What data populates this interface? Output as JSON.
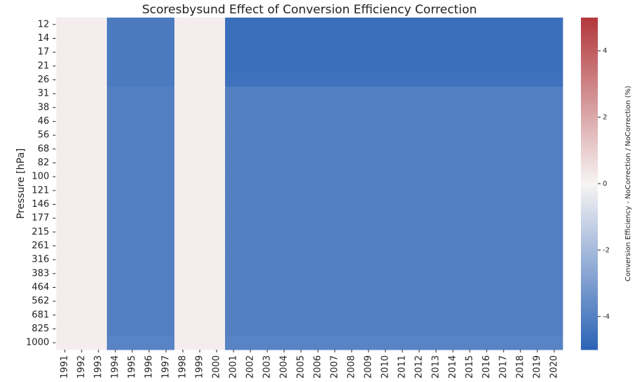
{
  "chart_data": {
    "type": "heatmap",
    "title": "Scoresbysund Effect of Conversion Efficiency Correction",
    "y_label": "Pressure [hPa]",
    "colorbar_label": "Conversion Efficiency - NoCorrection / NoCorrection  (%)",
    "categories": [
      "1991",
      "1992",
      "1993",
      "1994",
      "1995",
      "1996",
      "1997",
      "1998",
      "1999",
      "2000",
      "2001",
      "2002",
      "2003",
      "2004",
      "2005",
      "2006",
      "2007",
      "2008",
      "2009",
      "2010",
      "2011",
      "2012",
      "2013",
      "2014",
      "2015",
      "2016",
      "2017",
      "2018",
      "2019",
      "2020"
    ],
    "y_categories": [
      12,
      14,
      17,
      21,
      26,
      31,
      38,
      46,
      56,
      68,
      82,
      100,
      121,
      146,
      177,
      215,
      261,
      316,
      383,
      464,
      562,
      681,
      825,
      1000
    ],
    "values": [
      [
        0.2,
        0.2,
        0.2,
        -4.2,
        -4.2,
        -4.2,
        -4.2,
        0.2,
        0.2,
        0.2,
        -4.6,
        -4.6,
        -4.6,
        -4.6,
        -4.6,
        -4.6,
        -4.6,
        -4.6,
        -4.6,
        -4.6,
        -4.6,
        -4.6,
        -4.6,
        -4.6,
        -4.6,
        -4.6,
        -4.6,
        -4.6,
        -4.6,
        -4.6
      ],
      [
        0.2,
        0.2,
        0.2,
        -4.2,
        -4.2,
        -4.2,
        -4.2,
        0.2,
        0.2,
        0.2,
        -4.6,
        -4.6,
        -4.6,
        -4.6,
        -4.6,
        -4.6,
        -4.6,
        -4.6,
        -4.6,
        -4.6,
        -4.6,
        -4.6,
        -4.6,
        -4.6,
        -4.6,
        -4.6,
        -4.6,
        -4.6,
        -4.6,
        -4.6
      ],
      [
        0.2,
        0.2,
        0.2,
        -4.2,
        -4.2,
        -4.2,
        -4.2,
        0.2,
        0.2,
        0.2,
        -4.6,
        -4.6,
        -4.6,
        -4.6,
        -4.6,
        -4.6,
        -4.6,
        -4.6,
        -4.6,
        -4.6,
        -4.6,
        -4.6,
        -4.6,
        -4.6,
        -4.6,
        -4.6,
        -4.6,
        -4.6,
        -4.6,
        -4.6
      ],
      [
        0.2,
        0.2,
        0.2,
        -4.2,
        -4.2,
        -4.2,
        -4.2,
        0.2,
        0.2,
        0.2,
        -4.6,
        -4.6,
        -4.6,
        -4.6,
        -4.6,
        -4.6,
        -4.6,
        -4.6,
        -4.6,
        -4.6,
        -4.6,
        -4.6,
        -4.6,
        -4.6,
        -4.6,
        -4.6,
        -4.6,
        -4.6,
        -4.6,
        -4.6
      ],
      [
        0.2,
        0.2,
        0.2,
        -4.2,
        -4.2,
        -4.2,
        -4.2,
        0.2,
        0.2,
        0.2,
        -4.5,
        -4.5,
        -4.5,
        -4.5,
        -4.5,
        -4.5,
        -4.5,
        -4.5,
        -4.5,
        -4.5,
        -4.5,
        -4.5,
        -4.5,
        -4.5,
        -4.5,
        -4.5,
        -4.5,
        -4.5,
        -4.5,
        -4.5
      ],
      [
        0.2,
        0.2,
        0.2,
        -4.0,
        -4.0,
        -4.0,
        -4.0,
        0.2,
        0.2,
        0.2,
        -4.0,
        -4.0,
        -4.0,
        -4.0,
        -4.0,
        -4.0,
        -4.0,
        -4.0,
        -4.0,
        -4.0,
        -4.0,
        -4.0,
        -4.0,
        -4.0,
        -4.0,
        -4.0,
        -4.0,
        -4.0,
        -4.0,
        -4.0
      ],
      [
        0.2,
        0.2,
        0.2,
        -4.0,
        -4.0,
        -4.0,
        -4.0,
        0.2,
        0.2,
        0.2,
        -4.0,
        -4.0,
        -4.0,
        -4.0,
        -4.0,
        -4.0,
        -4.0,
        -4.0,
        -4.0,
        -4.0,
        -4.0,
        -4.0,
        -4.0,
        -4.0,
        -4.0,
        -4.0,
        -4.0,
        -4.0,
        -4.0,
        -4.0
      ],
      [
        0.2,
        0.2,
        0.2,
        -4.0,
        -4.0,
        -4.0,
        -4.0,
        0.2,
        0.2,
        0.2,
        -4.0,
        -4.0,
        -4.0,
        -4.0,
        -4.0,
        -4.0,
        -4.0,
        -4.0,
        -4.0,
        -4.0,
        -4.0,
        -4.0,
        -4.0,
        -4.0,
        -4.0,
        -4.0,
        -4.0,
        -4.0,
        -4.0,
        -4.0
      ],
      [
        0.2,
        0.2,
        0.2,
        -4.0,
        -4.0,
        -4.0,
        -4.0,
        0.2,
        0.2,
        0.2,
        -4.0,
        -4.0,
        -4.0,
        -4.0,
        -4.0,
        -4.0,
        -4.0,
        -4.0,
        -4.0,
        -4.0,
        -4.0,
        -4.0,
        -4.0,
        -4.0,
        -4.0,
        -4.0,
        -4.0,
        -4.0,
        -4.0,
        -4.0
      ],
      [
        0.2,
        0.2,
        0.2,
        -4.0,
        -4.0,
        -4.0,
        -4.0,
        0.2,
        0.2,
        0.2,
        -4.0,
        -4.0,
        -4.0,
        -4.0,
        -4.0,
        -4.0,
        -4.0,
        -4.0,
        -4.0,
        -4.0,
        -4.0,
        -4.0,
        -4.0,
        -4.0,
        -4.0,
        -4.0,
        -4.0,
        -4.0,
        -4.0,
        -4.0
      ],
      [
        0.2,
        0.2,
        0.2,
        -4.0,
        -4.0,
        -4.0,
        -4.0,
        0.2,
        0.2,
        0.2,
        -4.0,
        -4.0,
        -4.0,
        -4.0,
        -4.0,
        -4.0,
        -4.0,
        -4.0,
        -4.0,
        -4.0,
        -4.0,
        -4.0,
        -4.0,
        -4.0,
        -4.0,
        -4.0,
        -4.0,
        -4.0,
        -4.0,
        -4.0
      ],
      [
        0.2,
        0.2,
        0.2,
        -4.0,
        -4.0,
        -4.0,
        -4.0,
        0.2,
        0.2,
        0.2,
        -4.0,
        -4.0,
        -4.0,
        -4.0,
        -4.0,
        -4.0,
        -4.0,
        -4.0,
        -4.0,
        -4.0,
        -4.0,
        -4.0,
        -4.0,
        -4.0,
        -4.0,
        -4.0,
        -4.0,
        -4.0,
        -4.0,
        -4.0
      ],
      [
        0.2,
        0.2,
        0.2,
        -4.0,
        -4.0,
        -4.0,
        -4.0,
        0.2,
        0.2,
        0.2,
        -4.0,
        -4.0,
        -4.0,
        -4.0,
        -4.0,
        -4.0,
        -4.0,
        -4.0,
        -4.0,
        -4.0,
        -4.0,
        -4.0,
        -4.0,
        -4.0,
        -4.0,
        -4.0,
        -4.0,
        -4.0,
        -4.0,
        -4.0
      ],
      [
        0.2,
        0.2,
        0.2,
        -4.0,
        -4.0,
        -4.0,
        -4.0,
        0.2,
        0.2,
        0.2,
        -4.0,
        -4.0,
        -4.0,
        -4.0,
        -4.0,
        -4.0,
        -4.0,
        -4.0,
        -4.0,
        -4.0,
        -4.0,
        -4.0,
        -4.0,
        -4.0,
        -4.0,
        -4.0,
        -4.0,
        -4.0,
        -4.0,
        -4.0
      ],
      [
        0.2,
        0.2,
        0.2,
        -4.0,
        -4.0,
        -4.0,
        -4.0,
        0.2,
        0.2,
        0.2,
        -4.0,
        -4.0,
        -4.0,
        -4.0,
        -4.0,
        -4.0,
        -4.0,
        -4.0,
        -4.0,
        -4.0,
        -4.0,
        -4.0,
        -4.0,
        -4.0,
        -4.0,
        -4.0,
        -4.0,
        -4.0,
        -4.0,
        -4.0
      ],
      [
        0.2,
        0.2,
        0.2,
        -4.0,
        -4.0,
        -4.0,
        -4.0,
        0.2,
        0.2,
        0.2,
        -4.0,
        -4.0,
        -4.0,
        -4.0,
        -4.0,
        -4.0,
        -4.0,
        -4.0,
        -4.0,
        -4.0,
        -4.0,
        -4.0,
        -4.0,
        -4.0,
        -4.0,
        -4.0,
        -4.0,
        -4.0,
        -4.0,
        -4.0
      ],
      [
        0.2,
        0.2,
        0.2,
        -4.0,
        -4.0,
        -4.0,
        -4.0,
        0.2,
        0.2,
        0.2,
        -4.0,
        -4.0,
        -4.0,
        -4.0,
        -4.0,
        -4.0,
        -4.0,
        -4.0,
        -4.0,
        -4.0,
        -4.0,
        -4.0,
        -4.0,
        -4.0,
        -4.0,
        -4.0,
        -4.0,
        -4.0,
        -4.0,
        -4.0
      ],
      [
        0.2,
        0.2,
        0.2,
        -4.0,
        -4.0,
        -4.0,
        -4.0,
        0.2,
        0.2,
        0.2,
        -4.0,
        -4.0,
        -4.0,
        -4.0,
        -4.0,
        -4.0,
        -4.0,
        -4.0,
        -4.0,
        -4.0,
        -4.0,
        -4.0,
        -4.0,
        -4.0,
        -4.0,
        -4.0,
        -4.0,
        -4.0,
        -4.0,
        -4.0
      ],
      [
        0.2,
        0.2,
        0.2,
        -4.0,
        -4.0,
        -4.0,
        -4.0,
        0.2,
        0.2,
        0.2,
        -4.0,
        -4.0,
        -4.0,
        -4.0,
        -4.0,
        -4.0,
        -4.0,
        -4.0,
        -4.0,
        -4.0,
        -4.0,
        -4.0,
        -4.0,
        -4.0,
        -4.0,
        -4.0,
        -4.0,
        -4.0,
        -4.0,
        -4.0
      ],
      [
        0.2,
        0.2,
        0.2,
        -4.0,
        -4.0,
        -4.0,
        -4.0,
        0.2,
        0.2,
        0.2,
        -4.0,
        -4.0,
        -4.0,
        -4.0,
        -4.0,
        -4.0,
        -4.0,
        -4.0,
        -4.0,
        -4.0,
        -4.0,
        -4.0,
        -4.0,
        -4.0,
        -4.0,
        -4.0,
        -4.0,
        -4.0,
        -4.0,
        -4.0
      ],
      [
        0.2,
        0.2,
        0.2,
        -4.0,
        -4.0,
        -4.0,
        -4.0,
        0.2,
        0.2,
        0.2,
        -4.0,
        -4.0,
        -4.0,
        -4.0,
        -4.0,
        -4.0,
        -4.0,
        -4.0,
        -4.0,
        -4.0,
        -4.0,
        -4.0,
        -4.0,
        -4.0,
        -4.0,
        -4.0,
        -4.0,
        -4.0,
        -4.0,
        -4.0
      ],
      [
        0.2,
        0.2,
        0.2,
        -4.0,
        -4.0,
        -4.0,
        -4.0,
        0.2,
        0.2,
        0.2,
        -4.0,
        -4.0,
        -4.0,
        -4.0,
        -4.0,
        -4.0,
        -4.0,
        -4.0,
        -4.0,
        -4.0,
        -4.0,
        -4.0,
        -4.0,
        -4.0,
        -4.0,
        -4.0,
        -4.0,
        -4.0,
        -4.0,
        -4.0
      ],
      [
        0.2,
        0.2,
        0.2,
        -4.0,
        -4.0,
        -4.0,
        -4.0,
        0.2,
        0.2,
        0.2,
        -4.0,
        -4.0,
        -4.0,
        -4.0,
        -4.0,
        -4.0,
        -4.0,
        -4.0,
        -4.0,
        -4.0,
        -4.0,
        -4.0,
        -4.0,
        -4.0,
        -4.0,
        -4.0,
        -4.0,
        -4.0,
        -4.0,
        -4.0
      ],
      [
        0.2,
        0.2,
        0.2,
        -3.9,
        -3.9,
        -3.9,
        -3.9,
        0.2,
        0.2,
        0.2,
        -3.9,
        -3.9,
        -3.9,
        -3.9,
        -3.9,
        -3.9,
        -3.9,
        -3.9,
        -3.9,
        -3.9,
        -3.9,
        -3.9,
        -3.9,
        -3.9,
        -3.9,
        -3.9,
        -3.9,
        -3.9,
        -3.9,
        -3.9
      ]
    ],
    "zlim": [
      -5,
      5
    ],
    "zticks": [
      -4,
      -2,
      0,
      2,
      4
    ],
    "colormap": [
      "#2b63b6",
      "#f7f4f4",
      "#b2383c"
    ]
  }
}
